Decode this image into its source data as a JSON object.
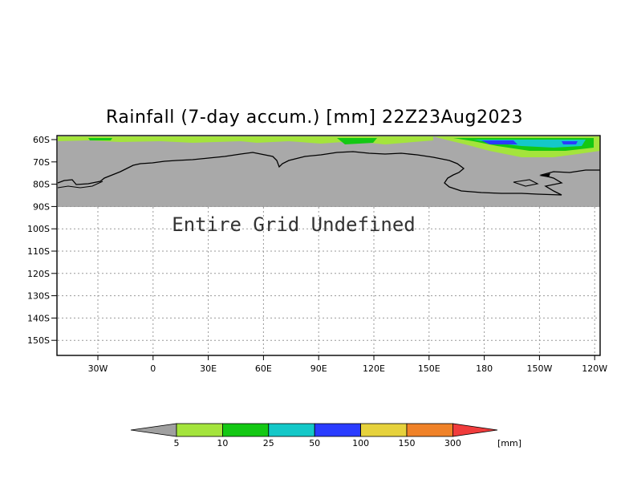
{
  "title": "Rainfall (7-day accum.) [mm] 22Z23Aug2023",
  "message": "Entire Grid Undefined",
  "y_ticks": [
    "60S",
    "70S",
    "80S",
    "90S",
    "100S",
    "110S",
    "120S",
    "130S",
    "140S",
    "150S"
  ],
  "x_ticks": [
    "30W",
    "0",
    "30E",
    "60E",
    "90E",
    "120E",
    "150E",
    "180",
    "150W",
    "120W"
  ],
  "colorbar": {
    "levels": [
      "5",
      "10",
      "25",
      "50",
      "100",
      "150",
      "300"
    ],
    "unit": "[mm]",
    "colors": [
      "#a0a0a0",
      "#a4e43c",
      "#14c814",
      "#14c8c8",
      "#2a3cff",
      "#e6d23c",
      "#f08228",
      "#f03c3c"
    ]
  },
  "colors": {
    "land_undefined": "#a9a9a9",
    "coastline": "#000000",
    "grid": "#999999"
  }
}
